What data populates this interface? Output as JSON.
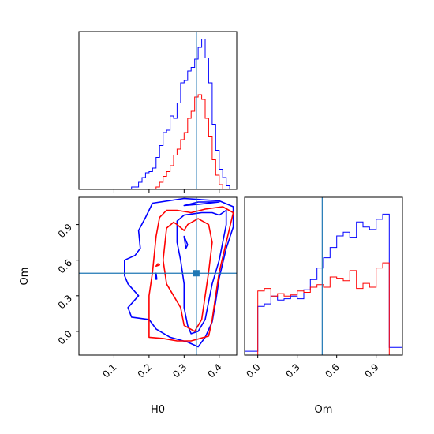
{
  "chart_data": {
    "type": "corner",
    "parameters": [
      "H0",
      "Om"
    ],
    "truth": {
      "H0": 0.335,
      "Om": 0.49
    },
    "colors": {
      "blue": "#0000ff",
      "red": "#ff0000",
      "truth": "#1f77b4"
    },
    "hist_H0": {
      "xlim": [
        0.0,
        0.45
      ],
      "bin_edges": [
        0.0,
        0.05,
        0.1,
        0.15,
        0.17,
        0.18,
        0.19,
        0.2,
        0.21,
        0.22,
        0.23,
        0.24,
        0.25,
        0.26,
        0.27,
        0.28,
        0.29,
        0.3,
        0.31,
        0.32,
        0.33,
        0.34,
        0.35,
        0.36,
        0.37,
        0.38,
        0.39,
        0.4,
        0.41,
        0.42,
        0.43,
        0.45
      ],
      "series": [
        {
          "color": "blue",
          "counts": [
            0,
            0,
            0,
            0.02,
            0.06,
            0.1,
            0.14,
            0.15,
            0.18,
            0.27,
            0.37,
            0.48,
            0.5,
            0.62,
            0.6,
            0.73,
            0.9,
            0.92,
            1.0,
            1.03,
            1.1,
            1.2,
            1.27,
            1.11,
            0.9,
            0.55,
            0.33,
            0.17,
            0.1,
            0.03,
            0
          ]
        },
        {
          "color": "red",
          "counts": [
            0,
            0,
            0,
            0,
            0,
            0,
            0,
            0,
            0,
            0.02,
            0.06,
            0.11,
            0.15,
            0.2,
            0.29,
            0.34,
            0.42,
            0.48,
            0.6,
            0.66,
            0.78,
            0.8,
            0.76,
            0.6,
            0.45,
            0.25,
            0.12,
            0.04,
            0,
            0,
            0
          ]
        }
      ]
    },
    "hist_Om": {
      "xlim": [
        -0.1,
        1.1
      ],
      "xticks": [
        0.0,
        0.3,
        0.6,
        0.9
      ],
      "xtick_labels": [
        "0.0",
        "0.3",
        "0.6",
        "0.9"
      ],
      "bin_edges": [
        -0.1,
        -0.05,
        0.0,
        0.05,
        0.1,
        0.15,
        0.2,
        0.25,
        0.3,
        0.35,
        0.4,
        0.45,
        0.5,
        0.55,
        0.6,
        0.65,
        0.7,
        0.75,
        0.8,
        0.85,
        0.9,
        0.95,
        1.0,
        1.05,
        1.1
      ],
      "series": [
        {
          "color": "blue",
          "counts": [
            0.03,
            0.03,
            0.38,
            0.4,
            0.46,
            0.43,
            0.44,
            0.46,
            0.44,
            0.51,
            0.59,
            0.68,
            0.76,
            0.84,
            0.93,
            0.96,
            0.92,
            1.04,
            1.0,
            0.98,
            1.06,
            1.1,
            0.06,
            0.06
          ]
        },
        {
          "color": "red",
          "counts": [
            0,
            0,
            0.5,
            0.52,
            0.46,
            0.48,
            0.46,
            0.47,
            0.5,
            0.49,
            0.53,
            0.55,
            0.53,
            0.61,
            0.6,
            0.58,
            0.66,
            0.52,
            0.56,
            0.53,
            0.68,
            0.72,
            0,
            0
          ]
        }
      ]
    },
    "contour_H0_Om": {
      "xlim": [
        0.0,
        0.45
      ],
      "ylim": [
        -0.2,
        1.13
      ],
      "xticks": [
        0.1,
        0.2,
        0.3,
        0.4
      ],
      "xtick_labels": [
        "0.1",
        "0.2",
        "0.3",
        "0.4"
      ],
      "yticks": [
        0.0,
        0.3,
        0.6,
        0.9
      ],
      "ytick_labels": [
        "0.0",
        "0.3",
        "0.6",
        "0.9"
      ],
      "contours": [
        {
          "color": "blue",
          "points": [
            [
              0.19,
              0.96
            ],
            [
              0.17,
              0.85
            ],
            [
              0.175,
              0.7
            ],
            [
              0.16,
              0.64
            ],
            [
              0.13,
              0.6
            ],
            [
              0.13,
              0.47
            ],
            [
              0.14,
              0.4
            ],
            [
              0.17,
              0.3
            ],
            [
              0.14,
              0.2
            ],
            [
              0.15,
              0.12
            ],
            [
              0.2,
              0.1
            ],
            [
              0.22,
              0.02
            ],
            [
              0.26,
              -0.05
            ],
            [
              0.31,
              -0.09
            ],
            [
              0.34,
              -0.13
            ],
            [
              0.36,
              -0.05
            ],
            [
              0.38,
              0.08
            ],
            [
              0.39,
              0.25
            ],
            [
              0.4,
              0.45
            ],
            [
              0.42,
              0.7
            ],
            [
              0.44,
              0.88
            ],
            [
              0.44,
              1.05
            ],
            [
              0.4,
              1.1
            ],
            [
              0.3,
              1.12
            ],
            [
              0.21,
              1.08
            ],
            [
              0.19,
              0.96
            ]
          ]
        },
        {
          "color": "blue",
          "points": [
            [
              0.28,
              0.93
            ],
            [
              0.3,
              0.98
            ],
            [
              0.35,
              1.0
            ],
            [
              0.38,
              1.0
            ],
            [
              0.4,
              0.98
            ],
            [
              0.42,
              1.02
            ],
            [
              0.42,
              0.9
            ],
            [
              0.4,
              0.6
            ],
            [
              0.38,
              0.4
            ],
            [
              0.37,
              0.25
            ],
            [
              0.36,
              0.1
            ],
            [
              0.34,
              0.0
            ],
            [
              0.32,
              -0.02
            ],
            [
              0.31,
              0.05
            ],
            [
              0.3,
              0.2
            ],
            [
              0.3,
              0.4
            ],
            [
              0.29,
              0.6
            ],
            [
              0.28,
              0.75
            ],
            [
              0.28,
              0.93
            ]
          ]
        },
        {
          "color": "blue",
          "points": [
            [
              0.3,
              1.06
            ],
            [
              0.34,
              1.09
            ],
            [
              0.4,
              1.09
            ],
            [
              0.34,
              1.07
            ],
            [
              0.3,
              1.06
            ]
          ]
        },
        {
          "color": "blue",
          "points": [
            [
              0.3,
              0.8
            ],
            [
              0.31,
              0.73
            ],
            [
              0.305,
              0.7
            ],
            [
              0.3,
              0.8
            ]
          ]
        },
        {
          "color": "blue",
          "points": [
            [
              0.22,
              0.49
            ],
            [
              0.222,
              0.44
            ],
            [
              0.218,
              0.44
            ],
            [
              0.22,
              0.49
            ]
          ]
        },
        {
          "color": "red",
          "points": [
            [
              0.23,
              0.96
            ],
            [
              0.25,
              1.02
            ],
            [
              0.28,
              1.02
            ],
            [
              0.32,
              1.0
            ],
            [
              0.36,
              1.03
            ],
            [
              0.41,
              1.05
            ],
            [
              0.44,
              1.0
            ],
            [
              0.42,
              0.75
            ],
            [
              0.4,
              0.5
            ],
            [
              0.39,
              0.3
            ],
            [
              0.38,
              0.1
            ],
            [
              0.37,
              -0.04
            ],
            [
              0.32,
              -0.08
            ],
            [
              0.28,
              -0.08
            ],
            [
              0.24,
              -0.06
            ],
            [
              0.2,
              -0.05
            ],
            [
              0.2,
              0.1
            ],
            [
              0.2,
              0.3
            ],
            [
              0.21,
              0.5
            ],
            [
              0.22,
              0.8
            ],
            [
              0.23,
              0.96
            ]
          ]
        },
        {
          "color": "red",
          "points": [
            [
              0.25,
              0.87
            ],
            [
              0.27,
              0.92
            ],
            [
              0.28,
              0.9
            ],
            [
              0.3,
              0.85
            ],
            [
              0.31,
              0.9
            ],
            [
              0.34,
              0.95
            ],
            [
              0.37,
              0.9
            ],
            [
              0.38,
              0.75
            ],
            [
              0.37,
              0.5
            ],
            [
              0.36,
              0.3
            ],
            [
              0.35,
              0.1
            ],
            [
              0.33,
              0.0
            ],
            [
              0.3,
              0.05
            ],
            [
              0.29,
              0.2
            ],
            [
              0.27,
              0.3
            ],
            [
              0.25,
              0.4
            ],
            [
              0.24,
              0.6
            ],
            [
              0.25,
              0.87
            ]
          ]
        },
        {
          "color": "red",
          "points": [
            [
              0.22,
              0.55
            ],
            [
              0.225,
              0.57
            ],
            [
              0.23,
              0.56
            ],
            [
              0.22,
              0.55
            ]
          ]
        }
      ]
    },
    "xlabels": [
      "H0",
      "Om"
    ],
    "ylabel": "Om"
  }
}
